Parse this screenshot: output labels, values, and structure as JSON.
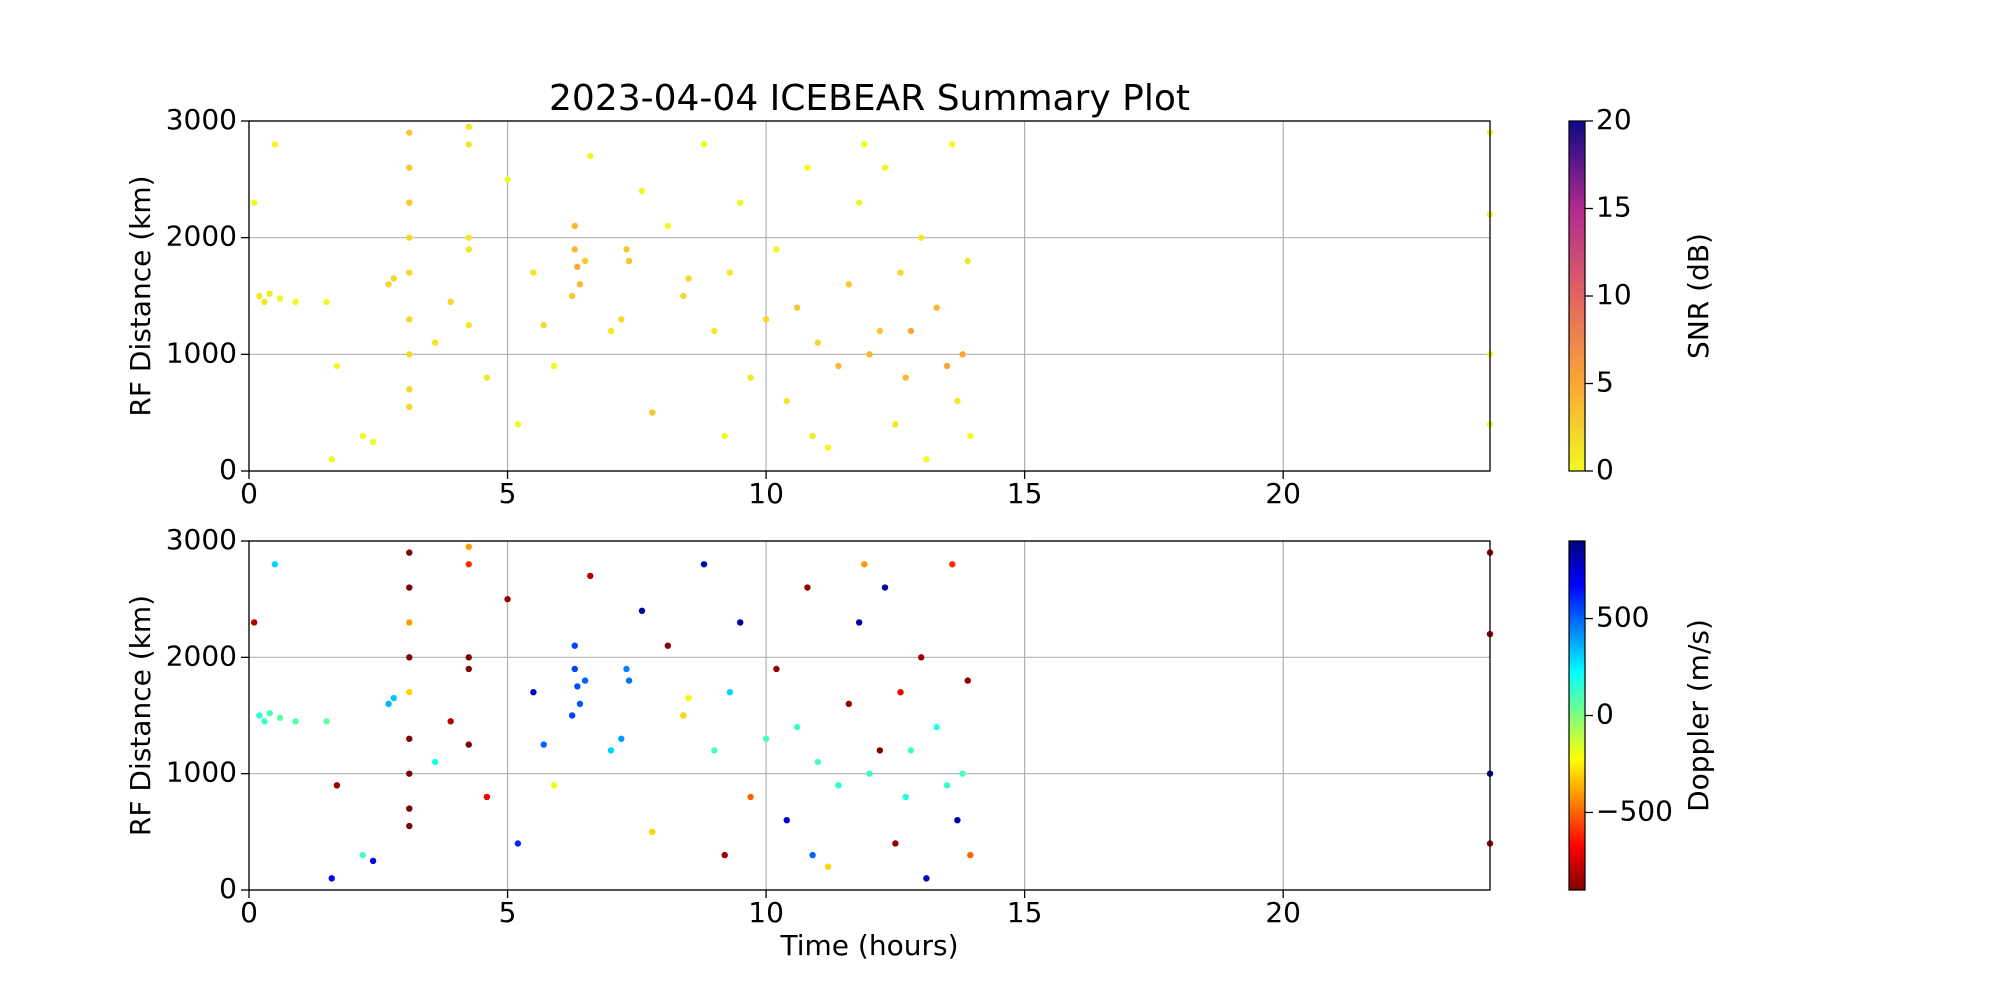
{
  "chart_data": [
    {
      "type": "scatter",
      "title": "2023-04-04 ICEBEAR Summary Plot",
      "ylabel": "RF Distance (km)",
      "xlim": [
        0,
        24
      ],
      "xticks": [
        0,
        5,
        10,
        15,
        20
      ],
      "ylim": [
        0,
        3000
      ],
      "yticks": [
        0,
        1000,
        2000,
        3000
      ],
      "grid": true,
      "x": [
        0.2,
        0.4,
        0.3,
        0.6,
        0.1,
        0.5,
        0.9,
        1.5,
        1.7,
        1.6,
        2.2,
        2.4,
        2.7,
        2.8,
        3.1,
        3.1,
        3.1,
        3.1,
        3.1,
        3.1,
        3.1,
        3.1,
        3.1,
        3.6,
        3.9,
        4.25,
        4.25,
        4.25,
        4.25,
        4.25,
        4.6,
        5.0,
        5.2,
        5.5,
        5.7,
        5.9,
        6.3,
        6.3,
        6.35,
        6.4,
        6.25,
        6.5,
        6.6,
        7.0,
        7.3,
        7.35,
        7.2,
        7.6,
        7.8,
        8.1,
        8.4,
        8.5,
        8.8,
        9.0,
        9.2,
        9.5,
        9.7,
        10.0,
        10.2,
        10.4,
        10.6,
        10.8,
        11.0,
        11.2,
        11.4,
        11.6,
        11.8,
        12.0,
        12.2,
        12.3,
        12.5,
        12.7,
        12.8,
        13.0,
        13.1,
        13.3,
        13.5,
        13.6,
        13.7,
        13.8,
        13.9,
        13.95,
        24.0,
        24.0,
        24.0,
        24.0,
        9.3,
        11.9,
        10.9,
        12.6
      ],
      "values": [
        1500,
        1520,
        1450,
        1480,
        2300,
        2800,
        1450,
        1450,
        900,
        100,
        300,
        250,
        1600,
        1650,
        2900,
        2600,
        2300,
        2000,
        1700,
        1300,
        1000,
        700,
        550,
        1100,
        1450,
        2950,
        2800,
        2000,
        1900,
        1250,
        800,
        2500,
        400,
        1700,
        1250,
        900,
        2100,
        1900,
        1750,
        1600,
        1500,
        1800,
        2700,
        1200,
        1900,
        1800,
        1300,
        2400,
        500,
        2100,
        1500,
        1650,
        2800,
        1200,
        300,
        2300,
        800,
        1300,
        1900,
        600,
        1400,
        2600,
        1100,
        200,
        900,
        1600,
        2300,
        1000,
        1200,
        2600,
        400,
        800,
        1200,
        2000,
        100,
        1400,
        900,
        2800,
        600,
        1000,
        1800,
        300,
        2900,
        2200,
        1000,
        400,
        1700,
        2800,
        300,
        1700
      ],
      "color_values": [
        1,
        1,
        1,
        0,
        0,
        0,
        0,
        0,
        0,
        0,
        0,
        0,
        2,
        2,
        3,
        3,
        3,
        2,
        2,
        2,
        2,
        2,
        2,
        1,
        2,
        1,
        1,
        1,
        1,
        1,
        1,
        0,
        0,
        1,
        2,
        0,
        4,
        4,
        5,
        4,
        3,
        3,
        0,
        1,
        3,
        3,
        2,
        0,
        3,
        0,
        2,
        2,
        0,
        1,
        0,
        0,
        1,
        2,
        0,
        1,
        3,
        0,
        2,
        0,
        4,
        3,
        0,
        4,
        3,
        0,
        1,
        4,
        5,
        1,
        0,
        4,
        5,
        0,
        1,
        5,
        1,
        0,
        0,
        0,
        0,
        0,
        1,
        0,
        1,
        2
      ],
      "colorbar": {
        "label": "SNR (dB)",
        "lim": [
          0,
          20
        ],
        "ticks": [
          0,
          5,
          10,
          15,
          20
        ],
        "colormap": "plasma_r"
      }
    },
    {
      "type": "scatter",
      "ylabel": "RF Distance (km)",
      "xlabel": "Time (hours)",
      "xlim": [
        0,
        24
      ],
      "xticks": [
        0,
        5,
        10,
        15,
        20
      ],
      "ylim": [
        0,
        3000
      ],
      "yticks": [
        0,
        1000,
        2000,
        3000
      ],
      "grid": true,
      "x": [
        0.2,
        0.4,
        0.3,
        0.6,
        0.1,
        0.5,
        0.9,
        1.5,
        1.7,
        1.6,
        2.2,
        2.4,
        2.7,
        2.8,
        3.1,
        3.1,
        3.1,
        3.1,
        3.1,
        3.1,
        3.1,
        3.1,
        3.1,
        3.6,
        3.9,
        4.25,
        4.25,
        4.25,
        4.25,
        4.25,
        4.6,
        5.0,
        5.2,
        5.5,
        5.7,
        5.9,
        6.3,
        6.3,
        6.35,
        6.4,
        6.25,
        6.5,
        6.6,
        7.0,
        7.3,
        7.35,
        7.2,
        7.6,
        7.8,
        8.1,
        8.4,
        8.5,
        8.8,
        9.0,
        9.2,
        9.5,
        9.7,
        10.0,
        10.2,
        10.4,
        10.6,
        10.8,
        11.0,
        11.2,
        11.4,
        11.6,
        11.8,
        12.0,
        12.2,
        12.3,
        12.5,
        12.7,
        12.8,
        13.0,
        13.1,
        13.3,
        13.5,
        13.6,
        13.7,
        13.8,
        13.9,
        13.95,
        24.0,
        24.0,
        24.0,
        24.0,
        9.3,
        11.9,
        10.9,
        12.6
      ],
      "values": [
        1500,
        1520,
        1450,
        1480,
        2300,
        2800,
        1450,
        1450,
        900,
        100,
        300,
        250,
        1600,
        1650,
        2900,
        2600,
        2300,
        2000,
        1700,
        1300,
        1000,
        700,
        550,
        1100,
        1450,
        2950,
        2800,
        2000,
        1900,
        1250,
        800,
        2500,
        400,
        1700,
        1250,
        900,
        2100,
        1900,
        1750,
        1600,
        1500,
        1800,
        2700,
        1200,
        1900,
        1800,
        1300,
        2400,
        500,
        2100,
        1500,
        1650,
        2800,
        1200,
        300,
        2300,
        800,
        1300,
        1900,
        600,
        1400,
        2600,
        1100,
        200,
        900,
        1600,
        2300,
        1000,
        1200,
        2600,
        400,
        800,
        1200,
        2000,
        100,
        1400,
        900,
        2800,
        600,
        1000,
        1800,
        300,
        2900,
        2200,
        1000,
        400,
        1700,
        2800,
        300,
        1700
      ],
      "color_values": [
        150,
        100,
        120,
        50,
        -800,
        300,
        80,
        60,
        -850,
        700,
        100,
        700,
        350,
        330,
        -900,
        -900,
        -400,
        -900,
        -300,
        -900,
        -900,
        -900,
        -900,
        200,
        -800,
        -400,
        -600,
        -900,
        -900,
        -900,
        -700,
        -850,
        600,
        800,
        500,
        -200,
        550,
        560,
        540,
        520,
        560,
        500,
        -800,
        300,
        450,
        470,
        400,
        850,
        -300,
        -880,
        -300,
        -200,
        800,
        100,
        -850,
        850,
        -500,
        120,
        -880,
        750,
        130,
        -860,
        100,
        -300,
        150,
        -870,
        820,
        120,
        -900,
        850,
        -880,
        160,
        110,
        -850,
        800,
        150,
        130,
        -600,
        830,
        100,
        -880,
        -500,
        -850,
        -870,
        850,
        -860,
        300,
        -400,
        500,
        -700
      ],
      "colorbar": {
        "label": "Doppler (m/s)",
        "lim": [
          -900,
          900
        ],
        "ticks": [
          {
            "value": -500,
            "label": "−500"
          },
          0,
          500
        ],
        "colormap": "jet_r"
      }
    }
  ]
}
